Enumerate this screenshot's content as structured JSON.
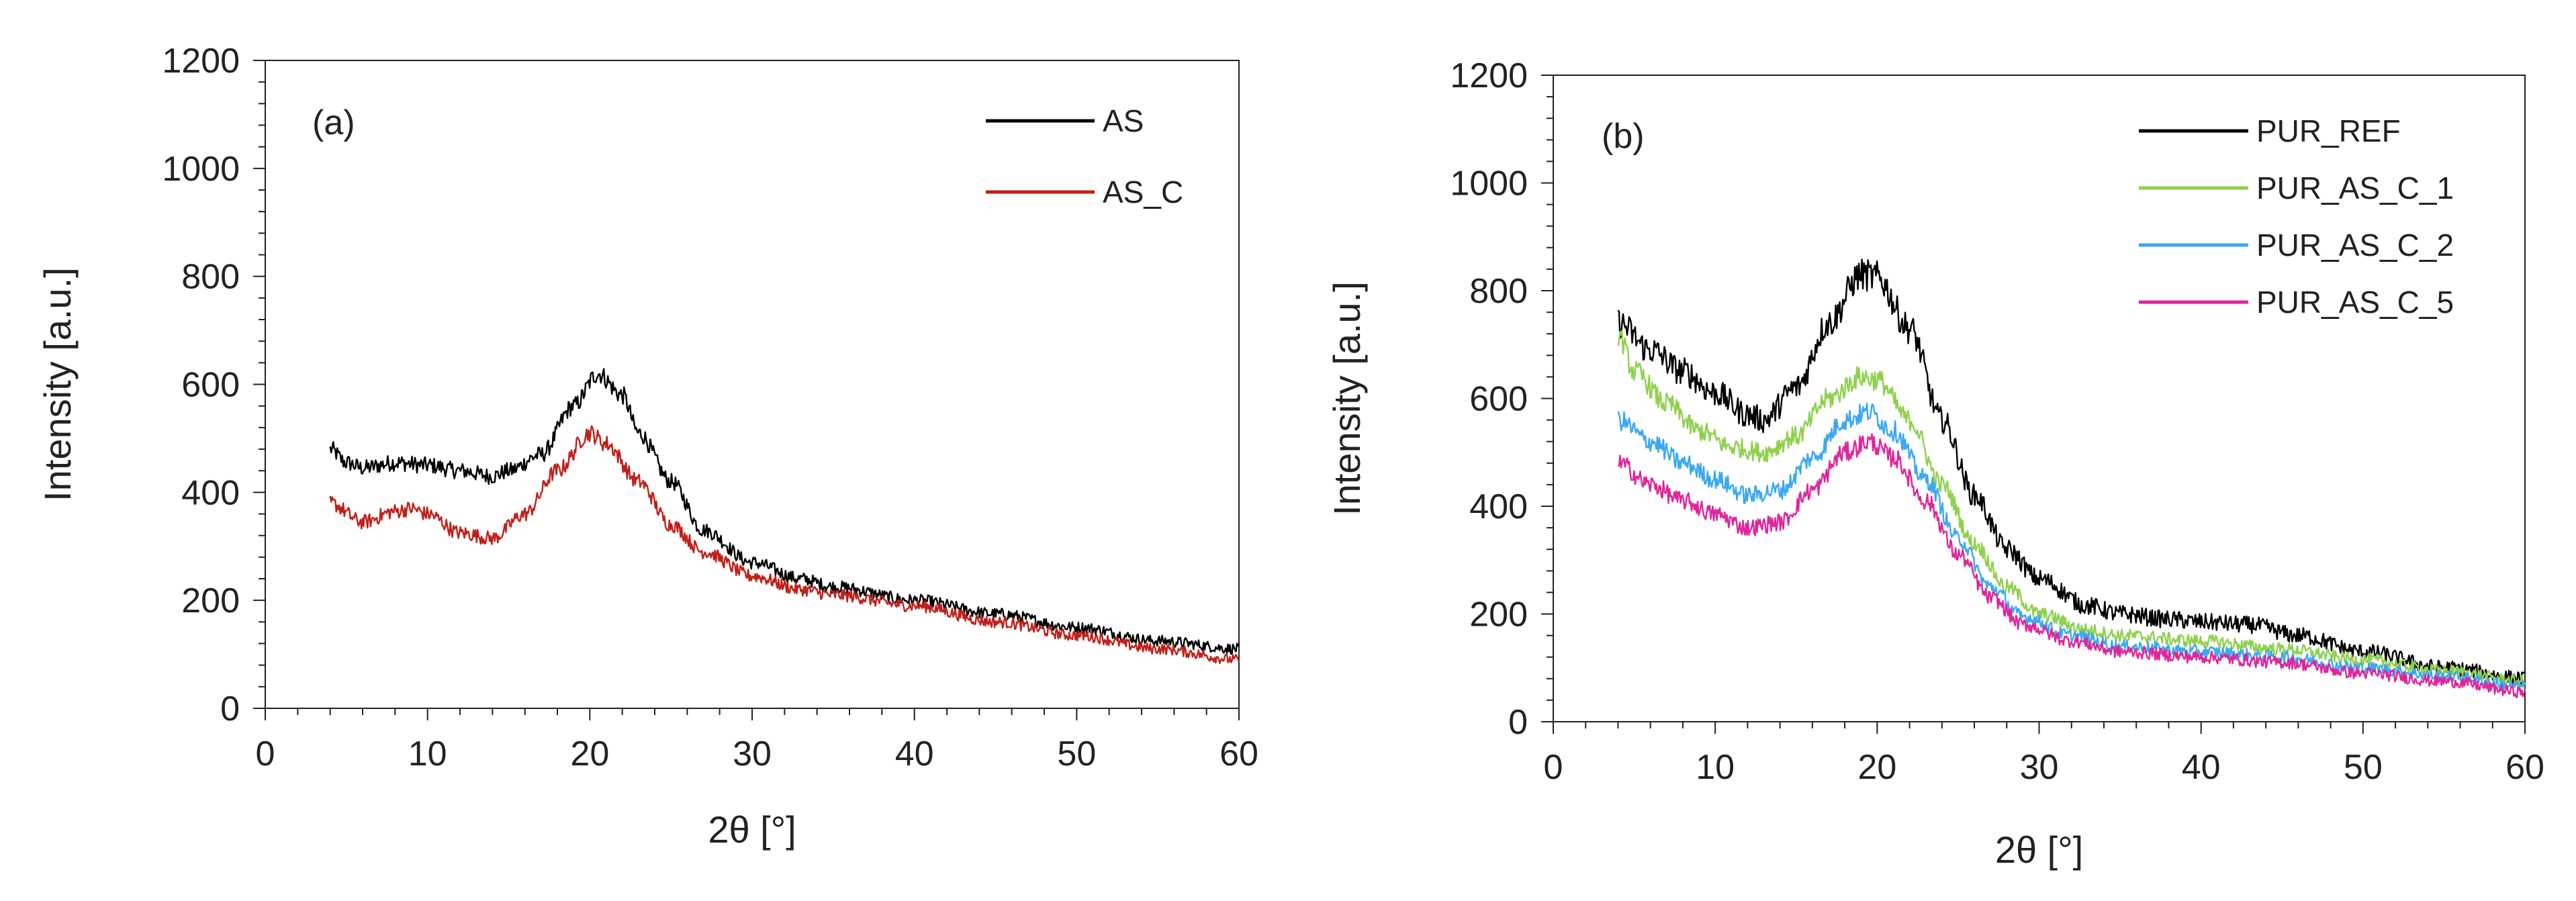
{
  "figure": {
    "description_panels": [
      "a",
      "b"
    ]
  },
  "chart_data": [
    {
      "type": "line",
      "panel": "(a)",
      "xlabel": "2θ [°]",
      "ylabel": "Intensity [a.u.]",
      "xlim": [
        0,
        60
      ],
      "ylim": [
        0,
        1200
      ],
      "xticks": [
        0,
        10,
        20,
        30,
        40,
        50,
        60
      ],
      "yticks": [
        0,
        200,
        400,
        600,
        800,
        1000,
        1200
      ],
      "legend_position": "top-right",
      "series": [
        {
          "name": "AS",
          "color": "#000000",
          "noise": 14,
          "points": [
            [
              4,
              480
            ],
            [
              5,
              455
            ],
            [
              6,
              445
            ],
            [
              8,
              455
            ],
            [
              10,
              450
            ],
            [
              12,
              440
            ],
            [
              14,
              430
            ],
            [
              15,
              440
            ],
            [
              17,
              470
            ],
            [
              19,
              560
            ],
            [
              20.5,
              620
            ],
            [
              22,
              580
            ],
            [
              23,
              510
            ],
            [
              25,
              420
            ],
            [
              27,
              330
            ],
            [
              30,
              270
            ],
            [
              33,
              240
            ],
            [
              35,
              225
            ],
            [
              40,
              200
            ],
            [
              45,
              175
            ],
            [
              50,
              150
            ],
            [
              55,
              125
            ],
            [
              60,
              110
            ]
          ]
        },
        {
          "name": "AS_C",
          "color": "#c0201a",
          "noise": 14,
          "points": [
            [
              4,
              380
            ],
            [
              6,
              345
            ],
            [
              8,
              365
            ],
            [
              9,
              370
            ],
            [
              10,
              360
            ],
            [
              12,
              325
            ],
            [
              14,
              315
            ],
            [
              16,
              360
            ],
            [
              18,
              440
            ],
            [
              20,
              510
            ],
            [
              21,
              490
            ],
            [
              23,
              420
            ],
            [
              25,
              340
            ],
            [
              27,
              290
            ],
            [
              30,
              245
            ],
            [
              33,
              220
            ],
            [
              35,
              210
            ],
            [
              40,
              190
            ],
            [
              45,
              160
            ],
            [
              50,
              135
            ],
            [
              55,
              110
            ],
            [
              60,
              90
            ]
          ]
        }
      ]
    },
    {
      "type": "line",
      "panel": "(b)",
      "xlabel": "2θ [°]",
      "ylabel": "Intensity [a.u.]",
      "xlim": [
        0,
        60
      ],
      "ylim": [
        0,
        1200
      ],
      "xticks": [
        0,
        10,
        20,
        30,
        40,
        50,
        60
      ],
      "yticks": [
        0,
        200,
        400,
        600,
        800,
        1000,
        1200
      ],
      "legend_position": "top-right",
      "series": [
        {
          "name": "PUR_REF",
          "color": "#000000",
          "noise": 20,
          "points": [
            [
              4,
              740
            ],
            [
              6,
              690
            ],
            [
              8,
              650
            ],
            [
              10,
              610
            ],
            [
              12,
              570
            ],
            [
              13,
              560
            ],
            [
              15,
              620
            ],
            [
              17,
              740
            ],
            [
              19,
              830
            ],
            [
              20,
              825
            ],
            [
              22,
              730
            ],
            [
              24,
              560
            ],
            [
              26,
              420
            ],
            [
              28,
              320
            ],
            [
              30,
              265
            ],
            [
              33,
              215
            ],
            [
              35,
              200
            ],
            [
              38,
              190
            ],
            [
              40,
              185
            ],
            [
              43,
              180
            ],
            [
              46,
              160
            ],
            [
              50,
              130
            ],
            [
              55,
              100
            ],
            [
              60,
              80
            ]
          ]
        },
        {
          "name": "PUR_AS_C_1",
          "color": "#8fd14f",
          "noise": 16,
          "points": [
            [
              4,
              720
            ],
            [
              5,
              650
            ],
            [
              7,
              590
            ],
            [
              9,
              540
            ],
            [
              11,
              510
            ],
            [
              13,
              500
            ],
            [
              15,
              530
            ],
            [
              17,
              600
            ],
            [
              19,
              640
            ],
            [
              20,
              635
            ],
            [
              22,
              560
            ],
            [
              24,
              440
            ],
            [
              26,
              330
            ],
            [
              28,
              250
            ],
            [
              30,
              200
            ],
            [
              33,
              170
            ],
            [
              35,
              160
            ],
            [
              40,
              150
            ],
            [
              45,
              135
            ],
            [
              50,
              115
            ],
            [
              55,
              95
            ],
            [
              60,
              75
            ]
          ]
        },
        {
          "name": "PUR_AS_C_2",
          "color": "#3ba8f0",
          "noise": 16,
          "points": [
            [
              4,
              560
            ],
            [
              6,
              520
            ],
            [
              8,
              480
            ],
            [
              10,
              450
            ],
            [
              12,
              420
            ],
            [
              14,
              430
            ],
            [
              16,
              490
            ],
            [
              18,
              560
            ],
            [
              19.5,
              575
            ],
            [
              21,
              540
            ],
            [
              23,
              450
            ],
            [
              25,
              340
            ],
            [
              27,
              250
            ],
            [
              29,
              195
            ],
            [
              32,
              160
            ],
            [
              35,
              140
            ],
            [
              40,
              130
            ],
            [
              45,
              120
            ],
            [
              50,
              100
            ],
            [
              55,
              85
            ],
            [
              60,
              65
            ]
          ]
        },
        {
          "name": "PUR_AS_C_5",
          "color": "#e0249a",
          "noise": 16,
          "points": [
            [
              4,
              480
            ],
            [
              6,
              440
            ],
            [
              8,
              410
            ],
            [
              10,
              385
            ],
            [
              12,
              360
            ],
            [
              14,
              370
            ],
            [
              16,
              430
            ],
            [
              18,
              500
            ],
            [
              19.5,
              520
            ],
            [
              21,
              490
            ],
            [
              23,
              410
            ],
            [
              25,
              310
            ],
            [
              27,
              230
            ],
            [
              29,
              180
            ],
            [
              32,
              150
            ],
            [
              35,
              130
            ],
            [
              40,
              120
            ],
            [
              45,
              110
            ],
            [
              50,
              90
            ],
            [
              55,
              75
            ],
            [
              60,
              55
            ]
          ]
        }
      ]
    }
  ]
}
